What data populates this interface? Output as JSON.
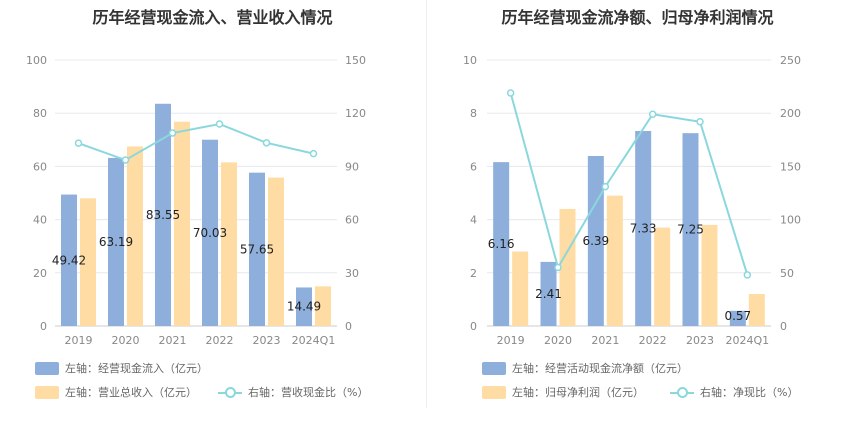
{
  "colors": {
    "bar_primary": "#8eafdc",
    "bar_secondary": "#ffdca3",
    "line": "#8ad8dd"
  },
  "chart_data": [
    {
      "type": "bar",
      "title": "历年经营现金流入、营业收入情况",
      "categories": [
        "2019",
        "2020",
        "2021",
        "2022",
        "2023",
        "2024Q1"
      ],
      "left_axis": {
        "min": 0,
        "max": 100,
        "ticks": [
          0,
          20,
          40,
          60,
          80,
          100
        ]
      },
      "right_axis": {
        "min": 0,
        "max": 150,
        "ticks": [
          0,
          30,
          60,
          90,
          120,
          150
        ]
      },
      "series": [
        {
          "name": "左轴：经营现金流入（亿元）",
          "axis": "left",
          "kind": "bar",
          "color": "#8eafdc",
          "values": [
            49.42,
            63.19,
            83.55,
            70.03,
            57.65,
            14.49
          ],
          "labels_shown": true
        },
        {
          "name": "左轴：营业总收入（亿元）",
          "axis": "left",
          "kind": "bar",
          "color": "#ffdca3",
          "values": [
            48.0,
            67.5,
            76.8,
            61.5,
            55.8,
            14.9
          ],
          "labels_shown": false
        },
        {
          "name": "右轴：营收现金比（%）",
          "axis": "right",
          "kind": "line",
          "color": "#8ad8dd",
          "values": [
            103.1,
            93.6,
            108.8,
            113.9,
            103.3,
            97.2
          ],
          "labels_shown": false
        }
      ],
      "legend": [
        {
          "label": "左轴：经营现金流入（亿元）",
          "kind": "bar",
          "color": "#8eafdc"
        },
        {
          "label": "左轴：营业总收入（亿元）",
          "kind": "bar",
          "color": "#ffdca3"
        },
        {
          "label": "右轴：营收现金比（%）",
          "kind": "line",
          "color": "#8ad8dd"
        }
      ]
    },
    {
      "type": "bar",
      "title": "历年经营现金流净额、归母净利润情况",
      "categories": [
        "2019",
        "2020",
        "2021",
        "2022",
        "2023",
        "2024Q1"
      ],
      "left_axis": {
        "min": 0,
        "max": 10,
        "ticks": [
          0,
          2,
          4,
          6,
          8,
          10
        ]
      },
      "right_axis": {
        "min": 0,
        "max": 250,
        "ticks": [
          0,
          50,
          100,
          150,
          200,
          250
        ]
      },
      "series": [
        {
          "name": "左轴：经营活动现金流净额（亿元）",
          "axis": "left",
          "kind": "bar",
          "color": "#8eafdc",
          "values": [
            6.16,
            2.41,
            6.39,
            7.33,
            7.25,
            0.57
          ],
          "labels_shown": true
        },
        {
          "name": "左轴：归母净利润（亿元）",
          "axis": "left",
          "kind": "bar",
          "color": "#ffdca3",
          "values": [
            2.8,
            4.4,
            4.9,
            3.7,
            3.8,
            1.2
          ],
          "labels_shown": false
        },
        {
          "name": "右轴：净现比（%）",
          "axis": "right",
          "kind": "line",
          "color": "#8ad8dd",
          "values": [
            219,
            55,
            131,
            199,
            192,
            48
          ],
          "labels_shown": false
        }
      ],
      "legend": [
        {
          "label": "左轴：经营活动现金流净额（亿元）",
          "kind": "bar",
          "color": "#8eafdc"
        },
        {
          "label": "左轴：归母净利润（亿元）",
          "kind": "bar",
          "color": "#ffdca3"
        },
        {
          "label": "右轴：净现比（%）",
          "kind": "line",
          "color": "#8ad8dd"
        }
      ]
    }
  ]
}
